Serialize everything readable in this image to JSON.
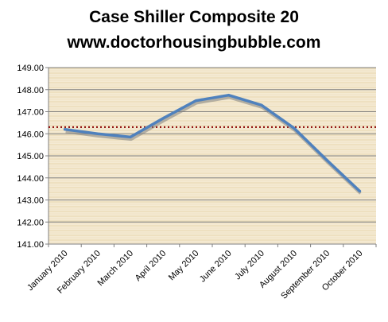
{
  "chart_data": {
    "type": "line",
    "title": "Case Shiller Composite 20",
    "subtitle": "www.doctorhousingbubble.com",
    "xlabel": "",
    "ylabel": "",
    "categories": [
      "January 2010",
      "February 2010",
      "March 2010",
      "April 2010",
      "May 2010",
      "June 2010",
      "July 2010",
      "August 2010",
      "September 2010",
      "October 2010"
    ],
    "series": [
      {
        "values": [
          146.2,
          146.0,
          145.85,
          146.7,
          147.5,
          147.75,
          147.3,
          146.25,
          144.8,
          143.4
        ]
      }
    ],
    "reference_line": {
      "value": 146.3,
      "style": "dotted",
      "color": "#8b0000"
    },
    "ylim": [
      141,
      149
    ],
    "yticks": [
      "141.00",
      "142.00",
      "143.00",
      "144.00",
      "145.00",
      "146.00",
      "147.00",
      "148.00",
      "149.00"
    ],
    "grid": true,
    "legend": "none",
    "colors": {
      "line": "#4f81bd",
      "background": "#f3e9d2",
      "texture": "#e8d7b0",
      "grid": "#808080"
    }
  }
}
